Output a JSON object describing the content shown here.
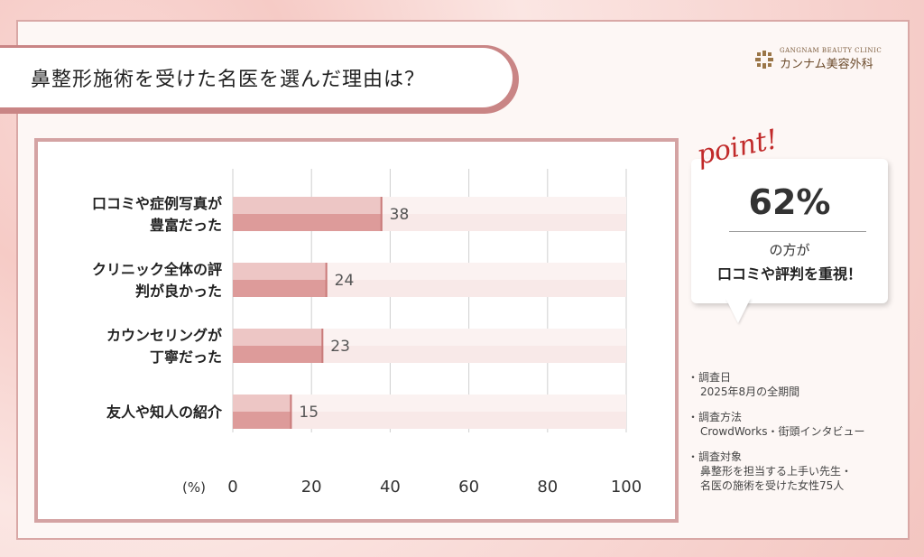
{
  "title": "鼻整形施術を受けた名医を選んだ理由は？",
  "logo": {
    "en": "GANGNAM BEAUTY CLINIC",
    "jp": "カンナム美容外科"
  },
  "callout": {
    "point": "point!",
    "percent": "62%",
    "line1": "の方が",
    "line2": "口コミや評判を重視！"
  },
  "notes": [
    {
      "heading": "・調査日",
      "text": "2025年8月の全期間"
    },
    {
      "heading": "・調査方法",
      "text": "CrowdWorks・街頭インタビュー"
    },
    {
      "heading": "・調査対象",
      "text": "鼻整形を担当する上手い先生・\n名医の施術を受けた女性75人"
    }
  ],
  "colors": {
    "bar": "#dd9b9a",
    "bar_highlight": "#edc6c5",
    "track": "#f8e9e8",
    "track_light": "#fbf2f1",
    "grid": "#cfcfcf"
  },
  "chart_data": {
    "type": "bar",
    "orientation": "horizontal",
    "categories": [
      [
        "口コミや症例写真が",
        "豊富だった"
      ],
      [
        "クリニック全体の評",
        "判が良かった"
      ],
      [
        "カウンセリングが",
        "丁寧だった"
      ],
      [
        "友人や知人の紹介"
      ]
    ],
    "values": [
      38,
      24,
      23,
      15
    ],
    "value_labels": [
      "38",
      "24",
      "23",
      "15"
    ],
    "xlabel": "(%)",
    "xlim": [
      0,
      100
    ],
    "xticks": [
      0,
      20,
      40,
      60,
      80,
      100
    ],
    "xtick_labels": [
      "0",
      "20",
      "40",
      "60",
      "80",
      "100"
    ],
    "grid": true
  }
}
